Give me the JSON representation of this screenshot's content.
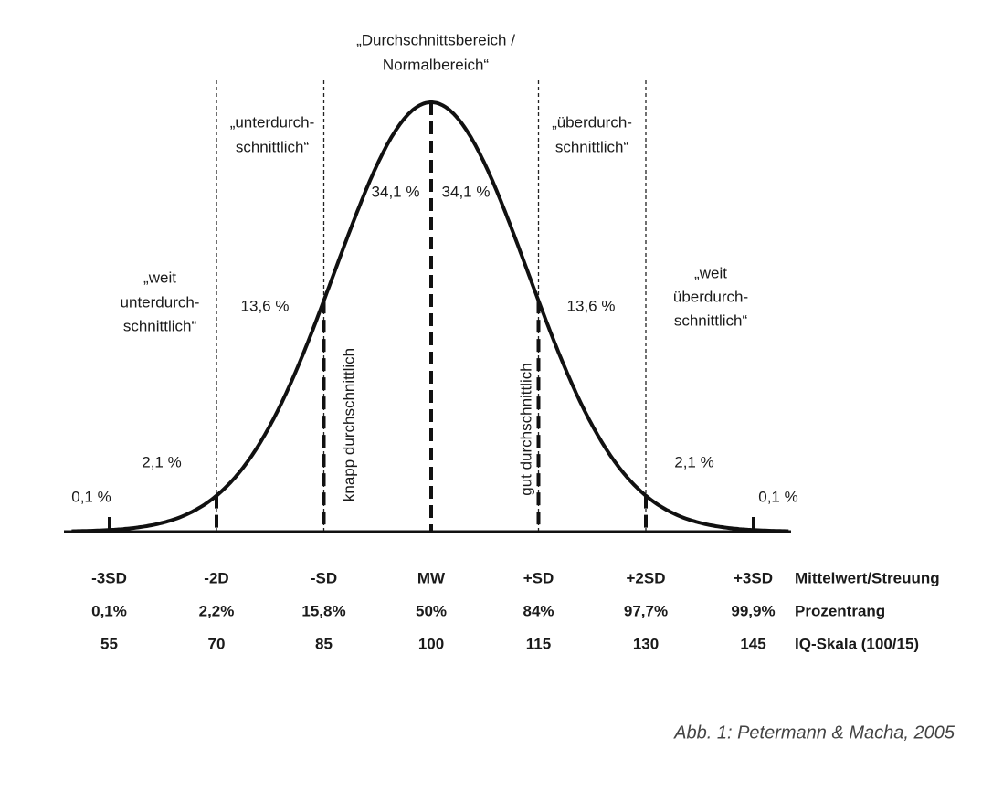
{
  "title": [
    "„Durchschnittsbereich /",
    "Normalbereich“"
  ],
  "zones": [
    {
      "lines": [
        "„weit",
        "unterdurch-",
        "schnittlich“"
      ]
    },
    {
      "lines": [
        "„unterdurch-",
        "schnittlich“"
      ]
    },
    {
      "lines": [
        "„überdurch-",
        "schnittlich“"
      ]
    },
    {
      "lines": [
        "„weit",
        "überdurch-",
        "schnittlich“"
      ]
    }
  ],
  "percentages": [
    "0,1 %",
    "2,1 %",
    "13,6 %",
    "34,1 %",
    "34,1 %",
    "13,6 %",
    "2,1 %",
    "0,1 %"
  ],
  "vertical_labels": [
    "knapp durchschnittlich",
    "gut durchschnittlich"
  ],
  "scale": {
    "rows": [
      {
        "values": [
          "-3SD",
          "-2D",
          "-SD",
          "MW",
          "+SD",
          "+2SD",
          "+3SD"
        ],
        "label": "Mittelwert/Streuung"
      },
      {
        "values": [
          "0,1%",
          "2,2%",
          "15,8%",
          "50%",
          "84%",
          "97,7%",
          "99,9%"
        ],
        "label": "Prozentrang"
      },
      {
        "values": [
          "55",
          "70",
          "85",
          "100",
          "115",
          "130",
          "145"
        ],
        "label": "IQ-Skala (100/15)"
      }
    ]
  },
  "caption": "Abb. 1: Petermann & Macha, 2005"
}
